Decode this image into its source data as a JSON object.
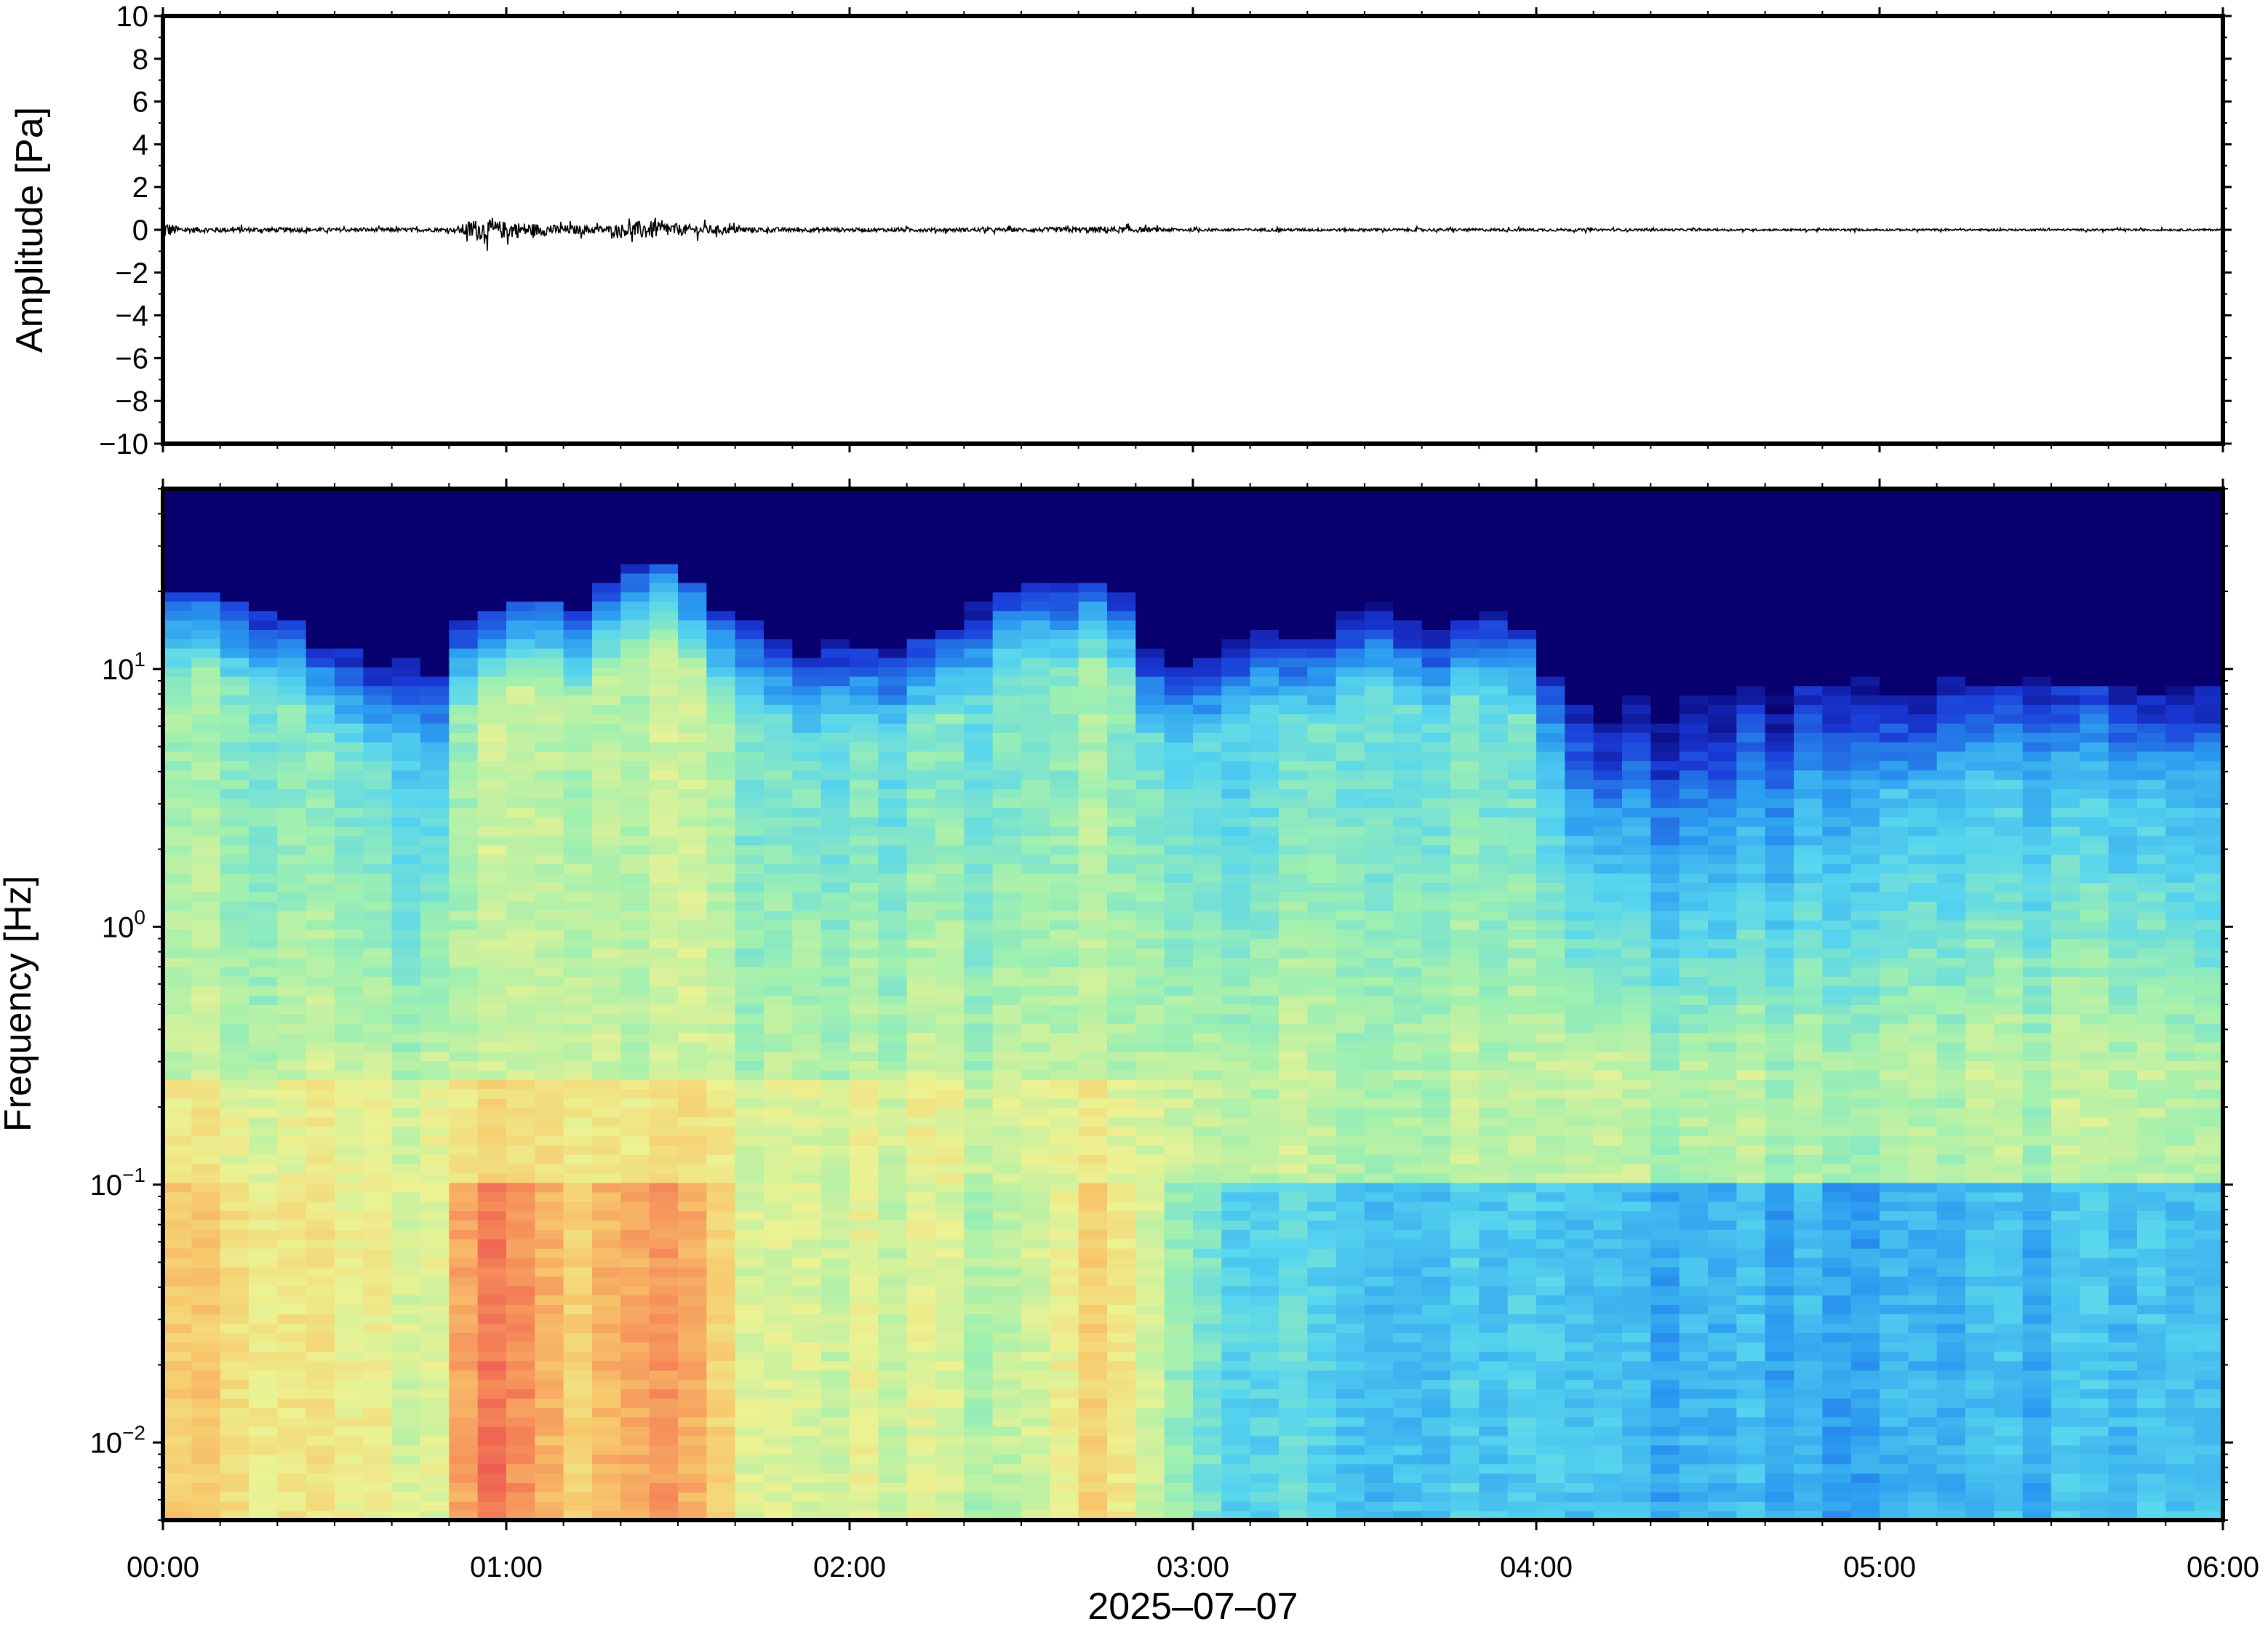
{
  "chart_data": [
    {
      "type": "line",
      "ylabel": "Amplitude [Pa]",
      "ylim": [
        -10,
        10
      ],
      "yticks": [
        10,
        8,
        6,
        4,
        2,
        0,
        -2,
        -4,
        -6,
        -8,
        -10
      ],
      "ytick_labels": [
        "10",
        "8",
        "6",
        "4",
        "2",
        "0",
        "−2",
        "−4",
        "−6",
        "−8",
        "−10"
      ],
      "xlim_hours": [
        0,
        6
      ],
      "series": [
        {
          "values_summary": "pressure waveform centred on 0 Pa; bursts up to about ±1 Pa near 00:55 and 01:25, otherwise within about ±0.3 Pa"
        }
      ],
      "envelope": {
        "time_hours": [
          0.0,
          0.05,
          0.5,
          0.85,
          0.9,
          1.0,
          1.15,
          1.3,
          1.4,
          1.5,
          1.75,
          2.0,
          2.5,
          2.75,
          3.0,
          3.5,
          4.0,
          4.5,
          5.0,
          5.5,
          6.0
        ],
        "amplitude_pa": [
          1.0,
          0.3,
          0.2,
          0.2,
          1.1,
          0.9,
          0.5,
          0.4,
          1.0,
          0.6,
          0.25,
          0.2,
          0.2,
          0.35,
          0.15,
          0.15,
          0.15,
          0.1,
          0.1,
          0.1,
          0.1
        ]
      },
      "grid": false
    },
    {
      "type": "heatmap",
      "ylabel": "Frequency [Hz]",
      "yscale": "log",
      "ylim": [
        0.005,
        50
      ],
      "yticks": [
        10,
        1,
        0.1,
        0.01
      ],
      "ytick_labels": [
        {
          "base": "10",
          "exp": "1"
        },
        {
          "base": "10",
          "exp": "0"
        },
        {
          "base": "10",
          "exp": "−1"
        },
        {
          "base": "10",
          "exp": "−2"
        }
      ],
      "xlabel": "2025–07–07",
      "xticks": [
        "00:00",
        "01:00",
        "02:00",
        "03:00",
        "04:00",
        "05:00",
        "06:00"
      ],
      "xlim_hours": [
        0,
        6
      ],
      "colormap": [
        "#08006e",
        "#1a3ad8",
        "#2b9cf0",
        "#58d6ee",
        "#9ff0b0",
        "#ecf292",
        "#f7ca6c",
        "#f68c5a",
        "#e8404a"
      ],
      "profile": {
        "time_hours": [
          0.0,
          0.4,
          0.8,
          0.9,
          1.0,
          1.2,
          1.4,
          1.5,
          1.75,
          2.0,
          2.5,
          2.75,
          2.9,
          3.1,
          3.5,
          4.0,
          4.1,
          4.5,
          5.0,
          5.5,
          6.0
        ],
        "cutoff_hz": [
          22,
          15,
          9,
          20,
          19,
          18,
          25,
          24,
          12,
          12,
          19,
          21,
          11,
          12,
          16,
          14,
          7,
          7,
          9,
          8,
          8
        ],
        "lowfreq_power": [
          0.75,
          0.65,
          0.6,
          0.9,
          0.88,
          0.7,
          0.85,
          0.8,
          0.6,
          0.6,
          0.55,
          0.72,
          0.55,
          0.4,
          0.35,
          0.35,
          0.3,
          0.3,
          0.3,
          0.3,
          0.35
        ],
        "midfreq_power": [
          0.5,
          0.45,
          0.35,
          0.55,
          0.55,
          0.5,
          0.55,
          0.55,
          0.45,
          0.42,
          0.45,
          0.5,
          0.42,
          0.38,
          0.45,
          0.42,
          0.2,
          0.18,
          0.3,
          0.3,
          0.3
        ]
      }
    }
  ]
}
